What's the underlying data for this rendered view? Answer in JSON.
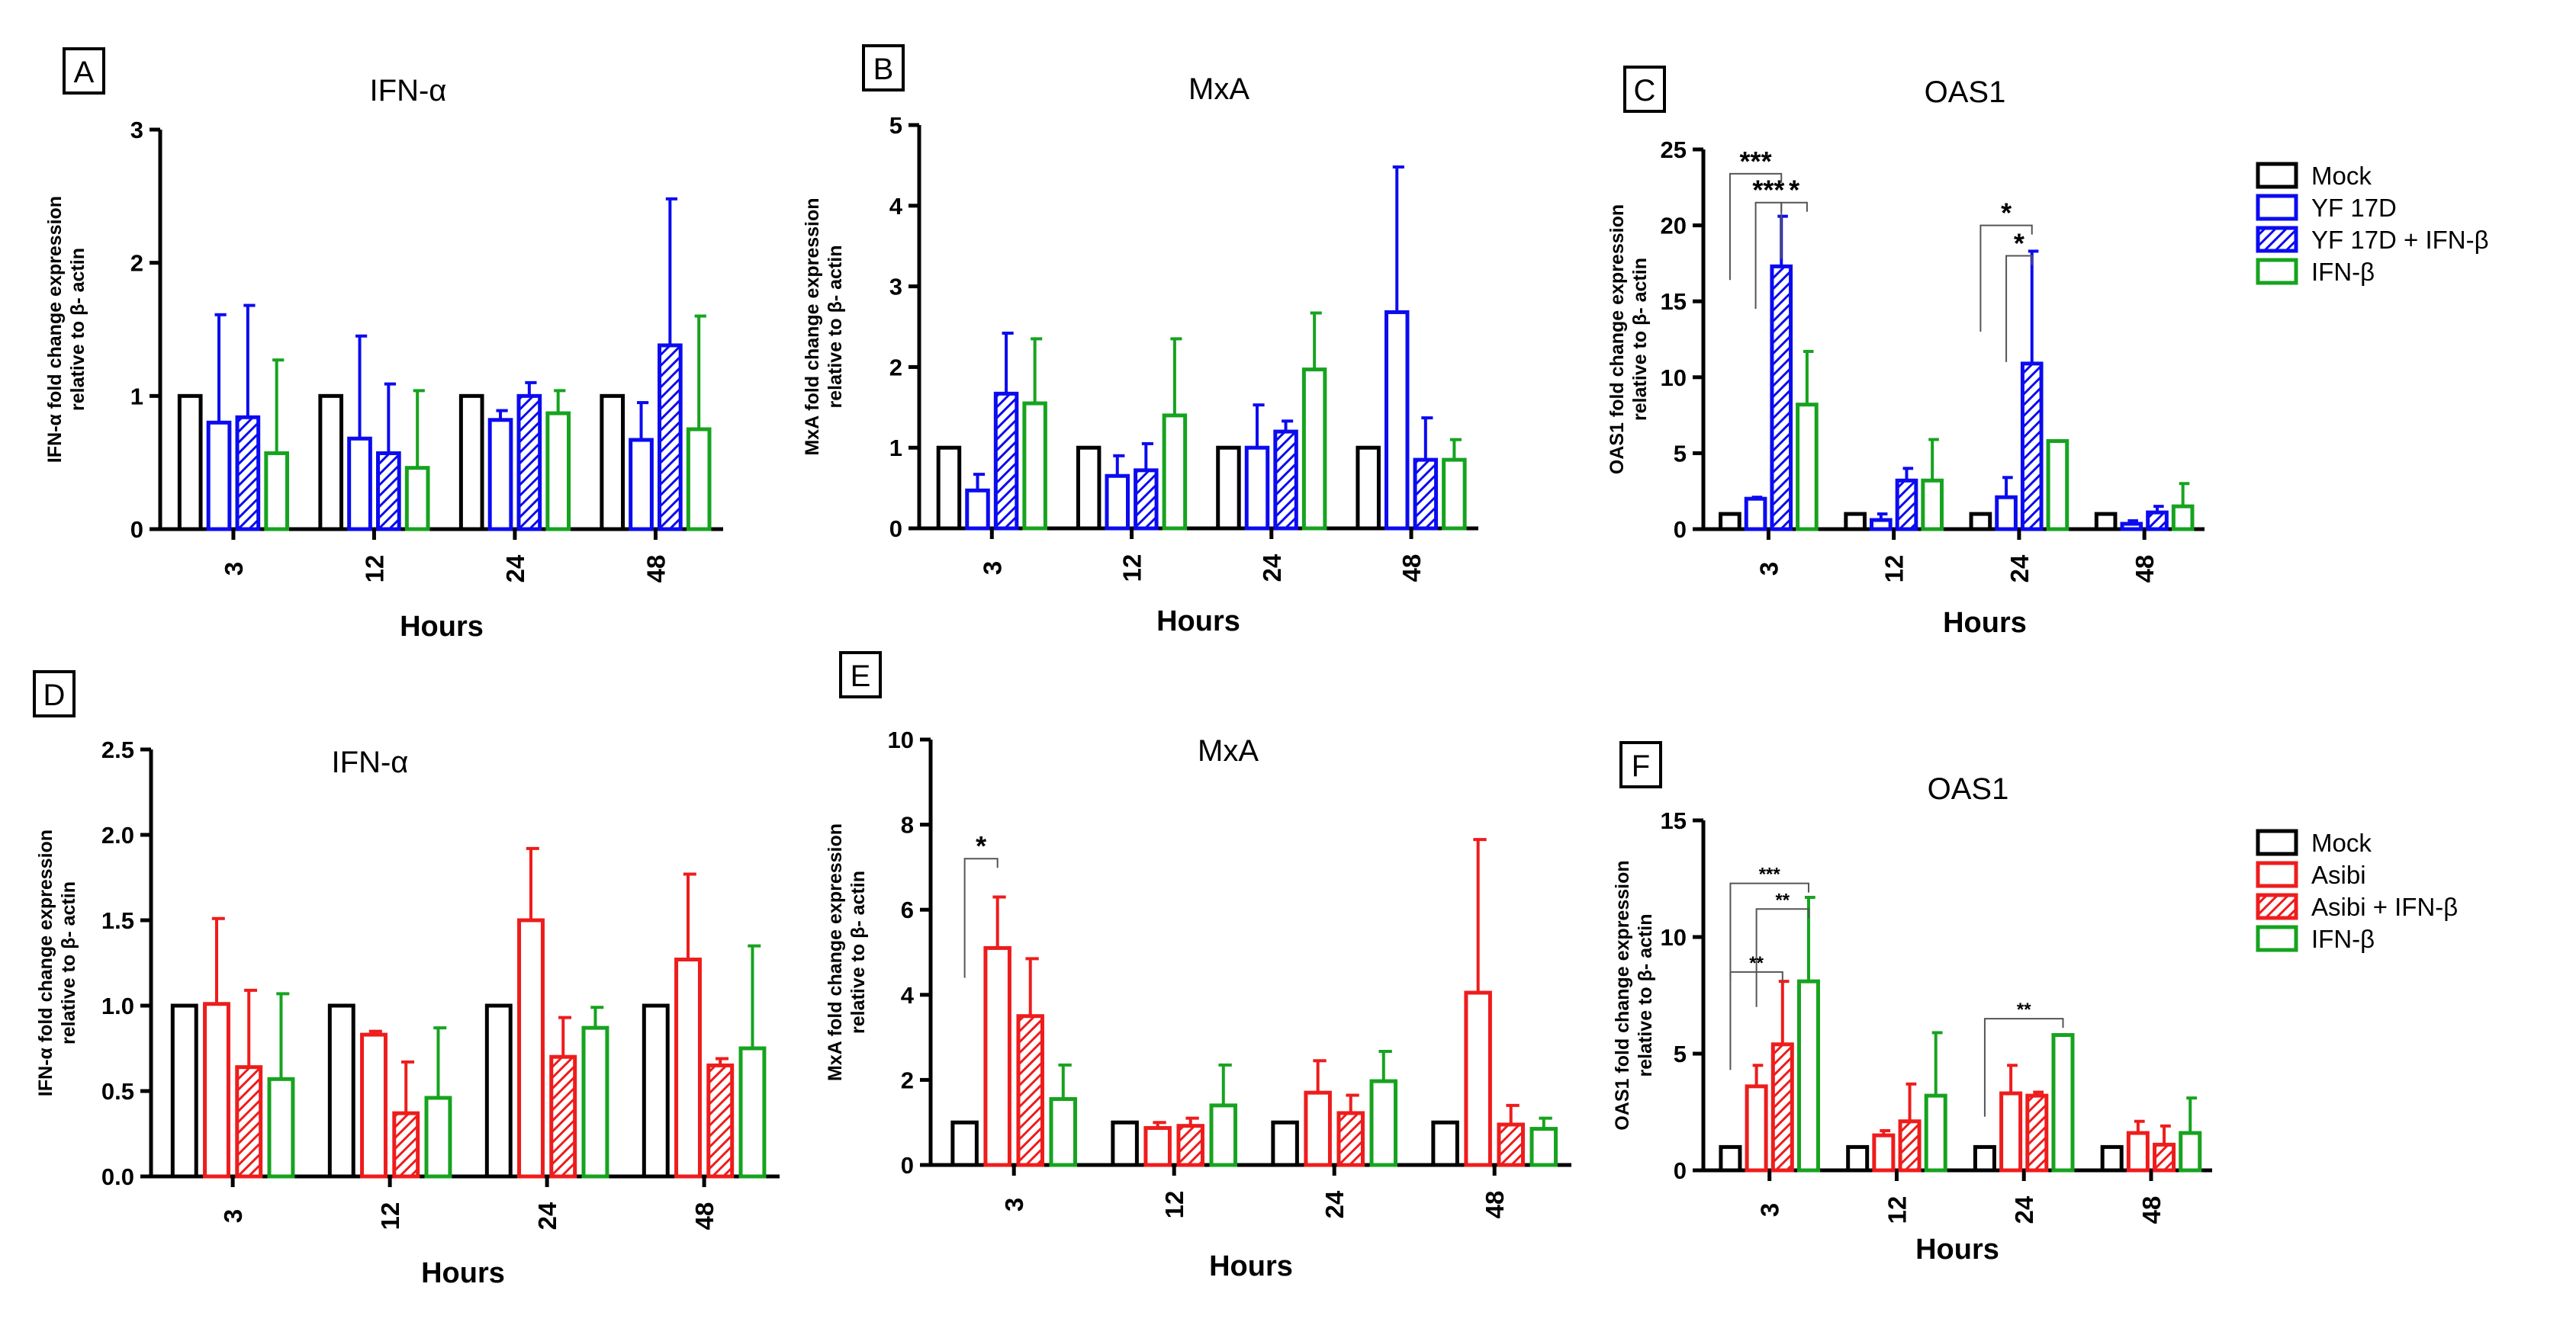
{
  "colors": {
    "mock": "#000000",
    "yf": "#0b0bf0",
    "asibi": "#ee1c1c",
    "ifnb": "#16a31f"
  },
  "legends": [
    {
      "panel_group": "top",
      "entries": [
        {
          "label": "Mock",
          "color": "#000000",
          "hatched": false
        },
        {
          "label": "YF 17D",
          "color": "#0b0bf0",
          "hatched": false
        },
        {
          "label": "YF 17D + IFN-β",
          "color": "#0b0bf0",
          "hatched": true
        },
        {
          "label": "IFN-β",
          "color": "#16a31f",
          "hatched": false
        }
      ]
    },
    {
      "panel_group": "bottom",
      "entries": [
        {
          "label": "Mock",
          "color": "#000000",
          "hatched": false
        },
        {
          "label": "Asibi",
          "color": "#ee1c1c",
          "hatched": false
        },
        {
          "label": "Asibi + IFN-β",
          "color": "#ee1c1c",
          "hatched": true
        },
        {
          "label": "IFN-β",
          "color": "#16a31f",
          "hatched": false
        }
      ]
    }
  ],
  "chart_data": [
    {
      "panel": "A",
      "type": "bar",
      "title": "IFN-α",
      "ylabel": [
        "IFN-α fold change expression",
        "relative to β- actin"
      ],
      "xlabel": "Hours",
      "categories": [
        "3",
        "12",
        "24",
        "48"
      ],
      "ylim": [
        0,
        3
      ],
      "yticks": [
        "0",
        "1",
        "2",
        "3"
      ],
      "series": [
        {
          "name": "Mock",
          "values": [
            1.0,
            1.0,
            1.0,
            1.0
          ],
          "errors": [
            0,
            0,
            0,
            0
          ]
        },
        {
          "name": "YF 17D",
          "values": [
            0.8,
            0.68,
            0.82,
            0.67
          ],
          "errors": [
            0.81,
            0.77,
            0.07,
            0.28
          ]
        },
        {
          "name": "YF 17D + IFN-β",
          "values": [
            0.84,
            0.57,
            1.0,
            1.38
          ],
          "errors": [
            0.84,
            0.52,
            0.1,
            1.1
          ]
        },
        {
          "name": "IFN-β",
          "values": [
            0.57,
            0.46,
            0.87,
            0.75
          ],
          "errors": [
            0.7,
            0.58,
            0.17,
            0.85
          ]
        }
      ],
      "significance": []
    },
    {
      "panel": "B",
      "type": "bar",
      "title": "MxA",
      "ylabel": [
        "MxA fold change expression",
        "relative to β- actin"
      ],
      "xlabel": "Hours",
      "categories": [
        "3",
        "12",
        "24",
        "48"
      ],
      "ylim": [
        0,
        5
      ],
      "yticks": [
        "0",
        "1",
        "2",
        "3",
        "4",
        "5"
      ],
      "series": [
        {
          "name": "Mock",
          "values": [
            1.0,
            1.0,
            1.0,
            1.0
          ],
          "errors": [
            0,
            0,
            0,
            0
          ]
        },
        {
          "name": "YF 17D",
          "values": [
            0.47,
            0.65,
            1.0,
            2.68
          ],
          "errors": [
            0.2,
            0.25,
            0.53,
            1.8
          ]
        },
        {
          "name": "YF 17D + IFN-β",
          "values": [
            1.67,
            0.72,
            1.2,
            0.85
          ],
          "errors": [
            0.75,
            0.33,
            0.13,
            0.52
          ]
        },
        {
          "name": "IFN-β",
          "values": [
            1.55,
            1.4,
            1.97,
            0.85
          ],
          "errors": [
            0.8,
            0.95,
            0.7,
            0.25
          ]
        }
      ],
      "significance": []
    },
    {
      "panel": "C",
      "type": "bar",
      "title": "OAS1",
      "ylabel": [
        "OAS1 fold change expression",
        "relative to β- actin"
      ],
      "xlabel": "Hours",
      "categories": [
        "3",
        "12",
        "24",
        "48"
      ],
      "ylim": [
        0,
        25
      ],
      "yticks": [
        "0",
        "5",
        "10",
        "15",
        "20",
        "25"
      ],
      "series": [
        {
          "name": "Mock",
          "values": [
            1.0,
            1.0,
            1.0,
            1.0
          ],
          "errors": [
            0,
            0,
            0,
            0
          ]
        },
        {
          "name": "YF 17D",
          "values": [
            2.0,
            0.6,
            2.1,
            0.35
          ],
          "errors": [
            0.1,
            0.4,
            1.3,
            0.2
          ]
        },
        {
          "name": "YF 17D + IFN-β",
          "values": [
            17.3,
            3.2,
            10.9,
            1.1
          ],
          "errors": [
            3.3,
            0.8,
            7.4,
            0.4
          ]
        },
        {
          "name": "IFN-β",
          "values": [
            8.2,
            3.2,
            5.8,
            1.5
          ],
          "errors": [
            3.5,
            2.7,
            0,
            1.5
          ]
        }
      ],
      "significance": [
        {
          "group": 0,
          "from": 0,
          "to": 2,
          "y": 23.4,
          "stars": "***"
        },
        {
          "group": 0,
          "from": 1,
          "to": 2,
          "y": 21.5,
          "stars": "***"
        },
        {
          "group": 0,
          "from": 2,
          "to": 3,
          "y": 21.5,
          "stars": "*"
        },
        {
          "group": 2,
          "from": 0,
          "to": 2,
          "y": 20.0,
          "stars": "*"
        },
        {
          "group": 2,
          "from": 1,
          "to": 2,
          "y": 18.0,
          "stars": "*"
        }
      ]
    },
    {
      "panel": "D",
      "type": "bar",
      "title": "IFN-α",
      "ylabel": [
        "IFN-α fold change expression",
        "relative to β- actin"
      ],
      "xlabel": "Hours",
      "categories": [
        "3",
        "12",
        "24",
        "48"
      ],
      "ylim": [
        0,
        2.5
      ],
      "yticks": [
        "0.0",
        "0.5",
        "1.0",
        "1.5",
        "2.0",
        "2.5"
      ],
      "series": [
        {
          "name": "Mock",
          "values": [
            1.0,
            1.0,
            1.0,
            1.0
          ],
          "errors": [
            0,
            0,
            0,
            0
          ]
        },
        {
          "name": "Asibi",
          "values": [
            1.01,
            0.83,
            1.5,
            1.27
          ],
          "errors": [
            0.5,
            0.02,
            0.42,
            0.5
          ]
        },
        {
          "name": "Asibi + IFN-β",
          "values": [
            0.64,
            0.37,
            0.7,
            0.65
          ],
          "errors": [
            0.45,
            0.3,
            0.23,
            0.04
          ]
        },
        {
          "name": "IFN-β",
          "values": [
            0.57,
            0.46,
            0.87,
            0.75
          ],
          "errors": [
            0.5,
            0.41,
            0.12,
            0.6
          ]
        }
      ],
      "significance": []
    },
    {
      "panel": "E",
      "type": "bar",
      "title": "MxA",
      "ylabel": [
        "MxA fold change expression",
        "relative to β- actin"
      ],
      "xlabel": "Hours",
      "categories": [
        "3",
        "12",
        "24",
        "48"
      ],
      "ylim": [
        0,
        10
      ],
      "yticks": [
        "0",
        "2",
        "4",
        "6",
        "8",
        "10"
      ],
      "series": [
        {
          "name": "Mock",
          "values": [
            1.0,
            1.0,
            1.0,
            1.0
          ],
          "errors": [
            0,
            0,
            0,
            0
          ]
        },
        {
          "name": "Asibi",
          "values": [
            5.1,
            0.87,
            1.7,
            4.05
          ],
          "errors": [
            1.2,
            0.13,
            0.75,
            3.6
          ]
        },
        {
          "name": "Asibi + IFN-β",
          "values": [
            3.5,
            0.92,
            1.22,
            0.95
          ],
          "errors": [
            1.35,
            0.18,
            0.42,
            0.45
          ]
        },
        {
          "name": "IFN-β",
          "values": [
            1.55,
            1.4,
            1.97,
            0.85
          ],
          "errors": [
            0.8,
            0.95,
            0.7,
            0.25
          ]
        }
      ],
      "significance": [
        {
          "group": 0,
          "from": 0,
          "to": 1,
          "y": 7.2,
          "stars": "*"
        }
      ]
    },
    {
      "panel": "F",
      "type": "bar",
      "title": "OAS1",
      "ylabel": [
        "OAS1 fold change expression",
        "relative to β- actin"
      ],
      "xlabel": "Hours",
      "categories": [
        "3",
        "12",
        "24",
        "48"
      ],
      "ylim": [
        0,
        15
      ],
      "yticks": [
        "0",
        "5",
        "10",
        "15"
      ],
      "series": [
        {
          "name": "Mock",
          "values": [
            1.0,
            1.0,
            1.0,
            1.0
          ],
          "errors": [
            0,
            0,
            0,
            0
          ]
        },
        {
          "name": "Asibi",
          "values": [
            3.6,
            1.5,
            3.3,
            1.6
          ],
          "errors": [
            0.9,
            0.2,
            1.2,
            0.5
          ]
        },
        {
          "name": "Asibi + IFN-β",
          "values": [
            5.4,
            2.1,
            3.2,
            1.1
          ],
          "errors": [
            2.7,
            1.6,
            0.15,
            0.8
          ]
        },
        {
          "name": "IFN-β",
          "values": [
            8.1,
            3.2,
            5.8,
            1.6
          ],
          "errors": [
            3.6,
            2.7,
            0,
            1.5
          ]
        }
      ],
      "significance": [
        {
          "group": 0,
          "from": 0,
          "to": 3,
          "y": 12.3,
          "stars": "***"
        },
        {
          "group": 0,
          "from": 1,
          "to": 3,
          "y": 11.2,
          "stars": "**"
        },
        {
          "group": 0,
          "from": 0,
          "to": 2,
          "y": 8.5,
          "stars": "**"
        },
        {
          "group": 2,
          "from": 0,
          "to": 3,
          "y": 6.5,
          "stars": "**"
        }
      ]
    }
  ]
}
